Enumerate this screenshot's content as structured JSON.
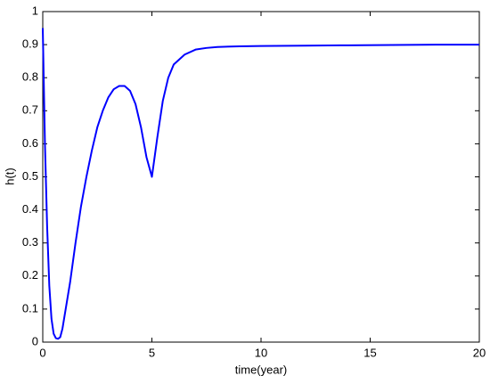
{
  "chart_data": {
    "type": "line",
    "xlabel": "time(year)",
    "ylabel": "h(t)",
    "x": [
      0,
      0.1,
      0.2,
      0.3,
      0.4,
      0.5,
      0.6,
      0.7,
      0.8,
      0.9,
      1,
      1.25,
      1.5,
      1.75,
      2,
      2.25,
      2.5,
      2.75,
      3,
      3.25,
      3.5,
      3.75,
      4,
      4.25,
      4.5,
      4.75,
      5,
      5.25,
      5.5,
      5.75,
      6,
      6.5,
      7,
      7.5,
      8,
      9,
      10,
      12,
      14,
      16,
      18,
      20
    ],
    "series": [
      {
        "color": "#0000ff",
        "values": [
          0.95,
          0.6,
          0.35,
          0.17,
          0.07,
          0.025,
          0.012,
          0.01,
          0.015,
          0.04,
          0.08,
          0.18,
          0.3,
          0.41,
          0.5,
          0.58,
          0.65,
          0.7,
          0.74,
          0.765,
          0.775,
          0.775,
          0.76,
          0.72,
          0.65,
          0.56,
          0.5,
          0.62,
          0.73,
          0.8,
          0.84,
          0.87,
          0.885,
          0.89,
          0.893,
          0.895,
          0.896,
          0.897,
          0.898,
          0.899,
          0.9,
          0.9
        ]
      }
    ],
    "xlim": [
      0,
      20
    ],
    "xticks": [
      0,
      5,
      10,
      15,
      20
    ],
    "ylim": [
      0,
      1
    ],
    "yticks": [
      0,
      0.1,
      0.2,
      0.3,
      0.4,
      0.5,
      0.6,
      0.7,
      0.8,
      0.9,
      1
    ]
  }
}
